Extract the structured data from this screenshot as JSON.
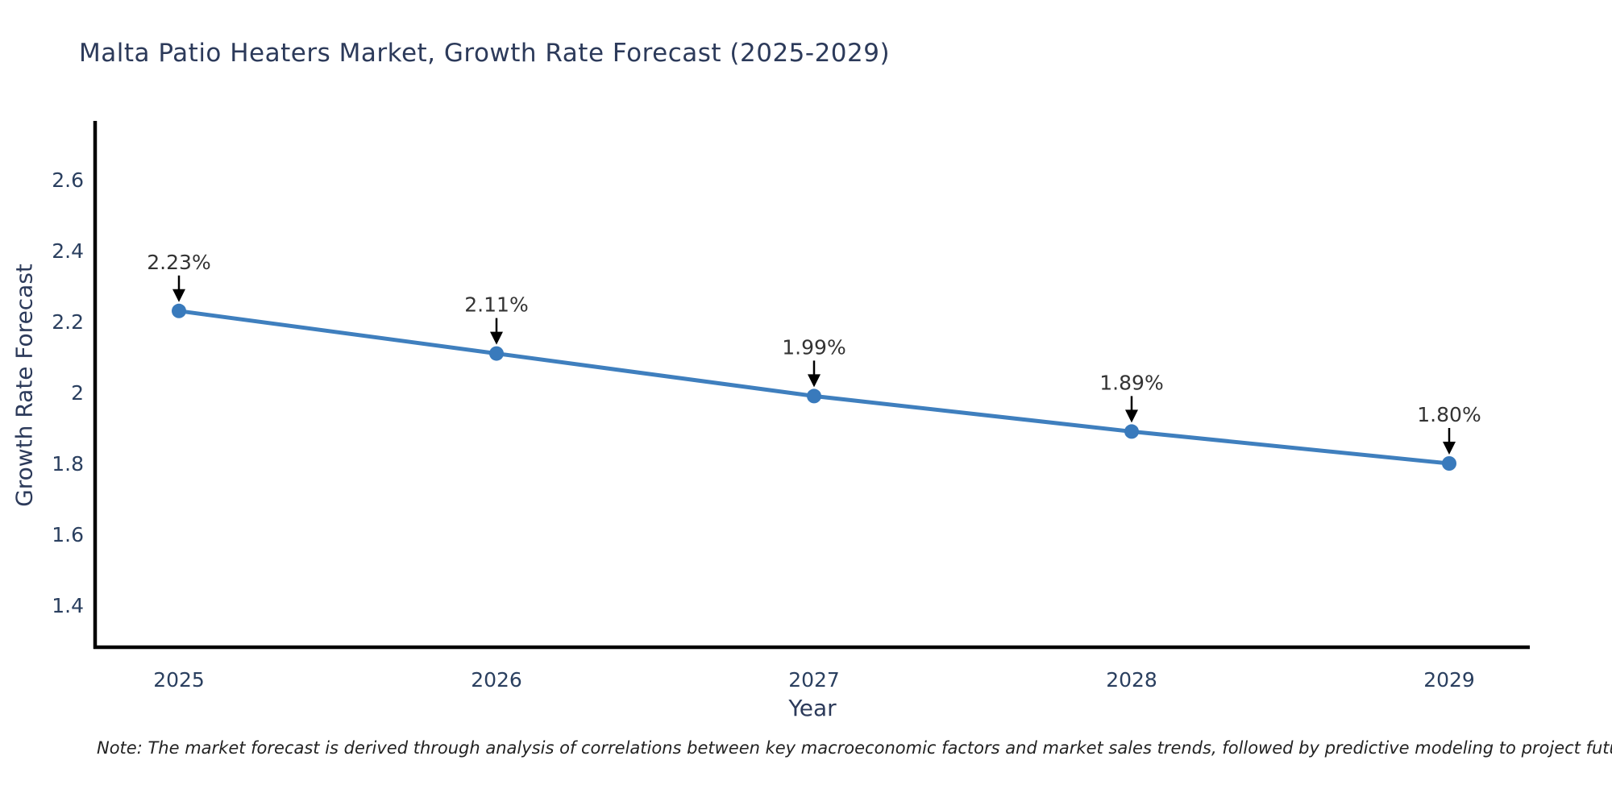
{
  "title": "Malta Patio Heaters Market, Growth Rate Forecast (2025-2029)",
  "note": "Note: The market forecast is derived through analysis of correlations between key macroeconomic factors and market sales trends, followed by predictive modeling to project future sales",
  "chart_data": {
    "type": "line",
    "title": "Malta Patio Heaters Market, Growth Rate Forecast (2025-2029)",
    "xlabel": "Year",
    "ylabel": "Growth Rate Forecast",
    "x": [
      2025,
      2026,
      2027,
      2028,
      2029
    ],
    "series": [
      {
        "name": "Growth Rate Forecast",
        "values": [
          2.23,
          2.11,
          1.99,
          1.89,
          1.8
        ]
      }
    ],
    "point_labels": [
      "2.23%",
      "2.11%",
      "1.99%",
      "1.89%",
      "1.80%"
    ],
    "x_tick_labels": [
      "2025",
      "2026",
      "2027",
      "2028",
      "2029"
    ],
    "y_tick_labels": [
      "2.6",
      "2.4",
      "2.2",
      "2",
      "1.8",
      "1.6",
      "1.4"
    ],
    "y_ticks": [
      2.6,
      2.4,
      2.2,
      2.0,
      1.8,
      1.6,
      1.4
    ],
    "ylim": [
      1.28,
      2.77
    ],
    "grid": false,
    "legend": "none",
    "colors": {
      "line": "#3f7fbe",
      "marker": "#397abc",
      "axis_line": "#000000",
      "tick_text": "#2a3f5f",
      "annotation_text": "#333333",
      "annotation_arrow": "#000000",
      "title_text": "#2c3a5a"
    }
  }
}
